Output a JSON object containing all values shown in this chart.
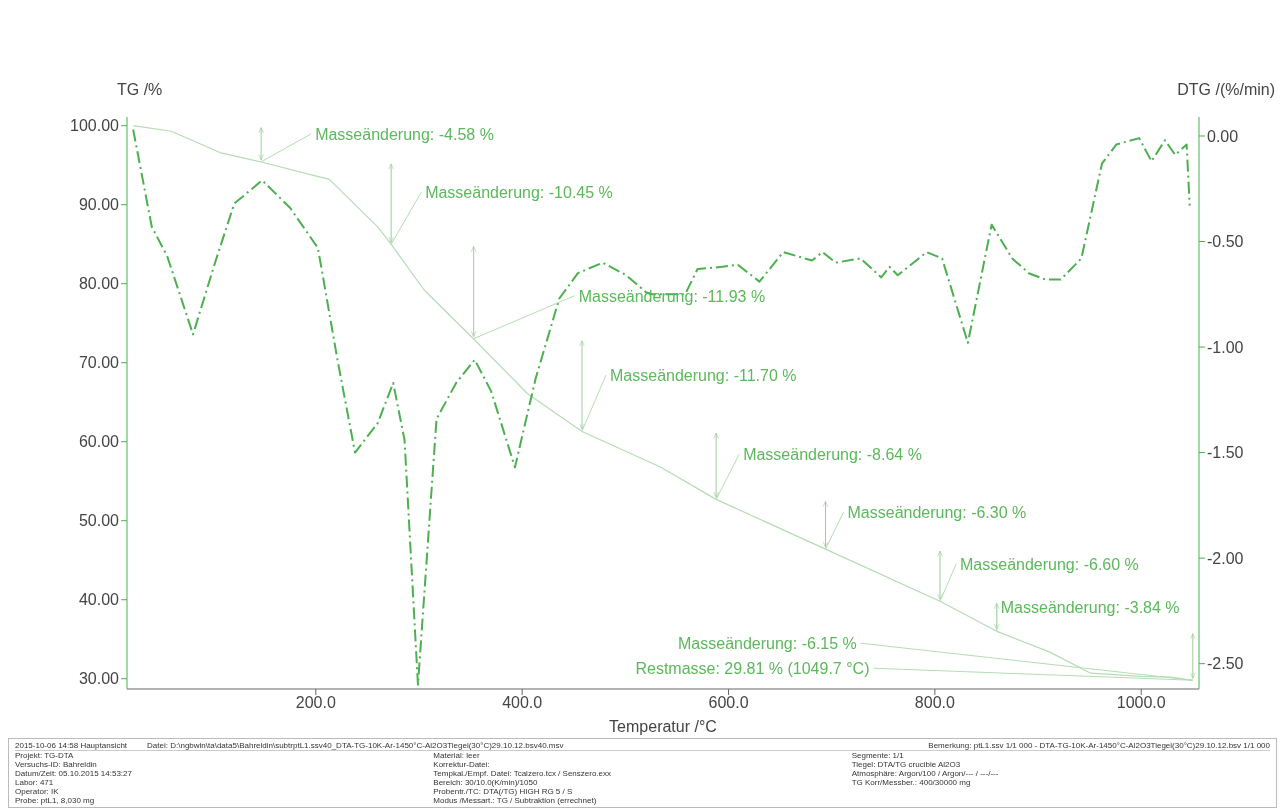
{
  "chart_data": {
    "type": "line",
    "xlabel": "Temperatur /°C",
    "ylabel": "TG /%",
    "y2label": "DTG /(%/min)",
    "xlim": [
      17,
      1056
    ],
    "xticks": [
      {
        "value": 200,
        "label": "200.0"
      },
      {
        "value": 400,
        "label": "400.0"
      },
      {
        "value": 600,
        "label": "600.0"
      },
      {
        "value": 800,
        "label": "800.0"
      },
      {
        "value": 1000,
        "label": "1000.0"
      }
    ],
    "ylim": [
      28.7,
      101.1
    ],
    "yticks": [
      {
        "value": 30,
        "label": "30.00"
      },
      {
        "value": 40,
        "label": "40.00"
      },
      {
        "value": 50,
        "label": "50.00"
      },
      {
        "value": 60,
        "label": "60.00"
      },
      {
        "value": 70,
        "label": "70.00"
      },
      {
        "value": 80,
        "label": "80.00"
      },
      {
        "value": 90,
        "label": "90.00"
      },
      {
        "value": 100,
        "label": "100.00"
      }
    ],
    "y2lim": [
      -2.62,
      0.09
    ],
    "y2ticks": [
      {
        "value": 0,
        "label": "0.00"
      },
      {
        "value": -0.5,
        "label": "-0.50"
      },
      {
        "value": -1,
        "label": "-1.00"
      },
      {
        "value": -1.5,
        "label": "-1.50"
      },
      {
        "value": -2,
        "label": "-2.00"
      },
      {
        "value": -2.5,
        "label": "-2.50"
      }
    ],
    "grid": false,
    "legend": false,
    "marker": "none",
    "series": [
      {
        "color": "#b5dcb5",
        "line_style": "solid",
        "x": [
          23,
          60,
          107,
          147,
          213,
          260,
          273,
          305,
          353,
          405,
          458,
          534,
          588,
          694,
          805,
          860,
          911,
          951,
          1000,
          1029,
          1050
        ],
        "values": [
          100,
          99.3,
          96.6,
          95.4,
          93.2,
          87.2,
          85.0,
          79.2,
          73.0,
          66.1,
          61.3,
          56.8,
          52.7,
          46.4,
          39.8,
          36.0,
          33.4,
          30.7,
          30.3,
          30.2,
          29.8
        ]
      },
      {
        "color": "#4caf50",
        "line_style": "dashed",
        "axis": "y2",
        "x": [
          23,
          41,
          56,
          81,
          103,
          121,
          148,
          175,
          202,
          221,
          238,
          260,
          275,
          286,
          299,
          317,
          336,
          354,
          370,
          393,
          413,
          436,
          454,
          478,
          501,
          520,
          526,
          558,
          570,
          594,
          609,
          630,
          653,
          681,
          691,
          704,
          728,
          748,
          756,
          764,
          792,
          807,
          832,
          855,
          875,
          891,
          907,
          922,
          942,
          962,
          976,
          998,
          1010,
          1023,
          1033,
          1044,
          1047
        ],
        "values": [
          0.03,
          -0.43,
          -0.57,
          -0.94,
          -0.59,
          -0.32,
          -0.21,
          -0.34,
          -0.53,
          -1.06,
          -1.5,
          -1.36,
          -1.17,
          -1.44,
          -2.6,
          -1.34,
          -1.17,
          -1.06,
          -1.21,
          -1.57,
          -1.15,
          -0.77,
          -0.65,
          -0.6,
          -0.66,
          -0.74,
          -0.75,
          -0.75,
          -0.63,
          -0.62,
          -0.61,
          -0.69,
          -0.55,
          -0.59,
          -0.55,
          -0.6,
          -0.58,
          -0.67,
          -0.62,
          -0.66,
          -0.55,
          -0.58,
          -0.98,
          -0.42,
          -0.58,
          -0.65,
          -0.68,
          -0.68,
          -0.58,
          -0.13,
          -0.04,
          -0.01,
          -0.12,
          -0.02,
          -0.09,
          -0.04,
          -0.33
        ]
      }
    ],
    "annotations": [
      {
        "text": "Masseänderung: -4.58 %",
        "x": 147,
        "y": 95.42
      },
      {
        "text": "Masseänderung: -10.45 %",
        "x": 273,
        "y": 84.97
      },
      {
        "text": "Masseänderung: -11.93 %",
        "x": 353,
        "y": 73.04
      },
      {
        "text": "Masseänderung: -11.70 %",
        "x": 458,
        "y": 61.34
      },
      {
        "text": "Masseänderung: -8.64 %",
        "x": 588,
        "y": 52.7
      },
      {
        "text": "Masseänderung: -6.30 %",
        "x": 694,
        "y": 46.4
      },
      {
        "text": "Masseänderung: -6.60 %",
        "x": 805,
        "y": 39.8
      },
      {
        "text": "Masseänderung: -3.84 %",
        "x": 860,
        "y": 35.96
      },
      {
        "text": "Masseänderung: -6.15 %",
        "x": 1050,
        "y": 29.81
      },
      {
        "text": "Restmasse: 29.81 % (1049.7 °C)",
        "x": 1049.7,
        "y": 29.81
      },
      "2015-10-06 14:58 Hauptansicht",
      "Datei: D:\\ngbwin\\ta\\data5\\Bahreldin\\subtrptL1.ssv40_DTA-TG-10K-Ar-1450°C-Al2O3Tiegel(30°C)29.10.12.bsv40.msv",
      "Bemerkung: ptL1.ssv 1/1 000 - DTA-TG-10K-Ar-1450°C-Al2O3Tiegel(30°C)29.10.12.bsv 1/1 000",
      "Projekt: TG-DTA",
      "Versuchs-ID: Bahreldin",
      "Datum/Zeit: 05.10.2015 14:53:27",
      "Labor: 471",
      "Operator: IK",
      "Probe: ptL1, 8,030 mg",
      "Material: leer",
      "Korrektur-Datei:",
      "Tempkal./Empf. Datei: Tcalzero.tcx / Senszero.exx",
      "Bereich: 30/10.0(K/min)/1050",
      "Probentr./TC: DTA(/TG) HIGH RG 5 / S",
      "Modus /Messart.: TG / Subtraktion (errechnet)",
      "Segmente: 1/1",
      "Tiegel: DTA/TG crucible Al2O3",
      "Atmosphäre: Argon/100 / Argon/--- / ---/---",
      "TG Korr/Messber.: 400/30000 mg"
    ]
  }
}
